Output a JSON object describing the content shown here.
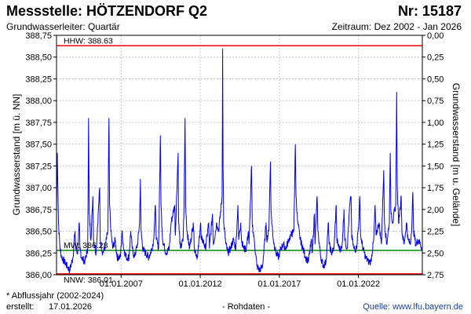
{
  "header": {
    "title": "Messstelle: HÖTZENDORF Q2",
    "number": "Nr: 15187",
    "aquifer": "Grundwasserleiter: Quartär",
    "period": "Zeitraum: Dez 2002 - Jan 2026"
  },
  "footer": {
    "note": "* Abflussjahr (2002-2024)",
    "created_label": "erstellt:",
    "created_date": "17.01.2026",
    "rawdata": "- Rohdaten -",
    "source": "Quelle: www.lfu.bayern.de"
  },
  "colors": {
    "series": "#0000ee",
    "hhw": "#ee0000",
    "nnw": "#ee0000",
    "mw": "#008800",
    "grid": "#c8c8c8"
  },
  "chart_data": {
    "type": "line",
    "ylabel": "Grundwasserstand [m ü. NN]",
    "y2label": "Grundwasserstand [m u. Gelände]",
    "ylim": [
      386.0,
      388.75
    ],
    "y2lim": [
      2.75,
      0.0
    ],
    "xlim": [
      "2002-12-01",
      "2026-01-15"
    ],
    "grid": true,
    "yticks": [
      "388,75",
      "388,50",
      "388,25",
      "388,00",
      "387,75",
      "387,50",
      "387,25",
      "387,00",
      "386,75",
      "386,50",
      "386,25",
      "386,00"
    ],
    "ytick_values": [
      388.75,
      388.5,
      388.25,
      388.0,
      387.75,
      387.5,
      387.25,
      387.0,
      386.75,
      386.5,
      386.25,
      386.0
    ],
    "y2ticks": [
      "0,00",
      "0,25",
      "0,50",
      "0,75",
      "1,00",
      "1,25",
      "1,50",
      "1,75",
      "2,00",
      "2,25",
      "2,50",
      "2,75"
    ],
    "xticks": [
      {
        "label": "01.01.2007",
        "date": "2007-01-01"
      },
      {
        "label": "01.01.2012",
        "date": "2012-01-01"
      },
      {
        "label": "01.01.2017",
        "date": "2017-01-01"
      },
      {
        "label": "01.01.2022",
        "date": "2022-01-01"
      }
    ],
    "reference_lines": [
      {
        "name": "HHW",
        "label": "HHW: 388.63",
        "value": 388.63
      },
      {
        "name": "MW",
        "label": "MW: 386.28",
        "value": 386.28
      },
      {
        "name": "NNW",
        "label": "NNW: 386.01",
        "value": 386.01
      }
    ],
    "series": [
      {
        "color": "#0000ee",
        "points": [
          [
            "2002-12-01",
            386.7
          ],
          [
            "2002-12-20",
            387.4
          ],
          [
            "2003-01-15",
            386.6
          ],
          [
            "2003-02-20",
            386.3
          ],
          [
            "2003-04-01",
            386.2
          ],
          [
            "2003-06-01",
            386.15
          ],
          [
            "2003-08-01",
            386.1
          ],
          [
            "2003-10-01",
            386.05
          ],
          [
            "2003-12-15",
            386.2
          ],
          [
            "2004-02-01",
            386.5
          ],
          [
            "2004-02-20",
            386.3
          ],
          [
            "2004-04-01",
            386.25
          ],
          [
            "2004-05-10",
            386.6
          ],
          [
            "2004-05-25",
            386.3
          ],
          [
            "2004-07-01",
            386.2
          ],
          [
            "2004-09-15",
            386.15
          ],
          [
            "2004-11-20",
            386.3
          ],
          [
            "2004-12-10",
            387.8
          ],
          [
            "2004-12-25",
            386.7
          ],
          [
            "2005-02-01",
            386.4
          ],
          [
            "2005-03-20",
            386.9
          ],
          [
            "2005-04-05",
            386.4
          ],
          [
            "2005-06-01",
            386.25
          ],
          [
            "2005-08-23",
            387.0
          ],
          [
            "2005-09-05",
            386.4
          ],
          [
            "2005-11-01",
            386.25
          ],
          [
            "2005-12-20",
            386.3
          ],
          [
            "2006-03-01",
            386.5
          ],
          [
            "2006-03-25",
            387.8
          ],
          [
            "2006-04-10",
            386.8
          ],
          [
            "2006-05-10",
            386.5
          ],
          [
            "2006-06-20",
            386.3
          ],
          [
            "2006-08-15",
            386.4
          ],
          [
            "2006-10-01",
            386.2
          ],
          [
            "2006-12-15",
            386.2
          ],
          [
            "2007-01-20",
            386.5
          ],
          [
            "2007-03-01",
            386.3
          ],
          [
            "2007-05-01",
            386.2
          ],
          [
            "2007-07-01",
            386.2
          ],
          [
            "2007-08-10",
            386.5
          ],
          [
            "2007-09-15",
            386.3
          ],
          [
            "2007-11-01",
            386.2
          ],
          [
            "2008-01-15",
            386.35
          ],
          [
            "2008-03-01",
            386.6
          ],
          [
            "2008-03-20",
            387.1
          ],
          [
            "2008-04-05",
            386.5
          ],
          [
            "2008-05-15",
            386.3
          ],
          [
            "2008-07-15",
            386.25
          ],
          [
            "2008-10-01",
            386.2
          ],
          [
            "2008-12-10",
            386.3
          ],
          [
            "2009-01-20",
            386.4
          ],
          [
            "2009-03-01",
            386.8
          ],
          [
            "2009-03-25",
            386.4
          ],
          [
            "2009-05-15",
            386.3
          ],
          [
            "2009-06-25",
            387.6
          ],
          [
            "2009-07-10",
            386.8
          ],
          [
            "2009-08-15",
            386.4
          ],
          [
            "2009-11-01",
            386.25
          ],
          [
            "2010-01-15",
            386.3
          ],
          [
            "2010-03-01",
            386.6
          ],
          [
            "2010-05-20",
            386.8
          ],
          [
            "2010-06-05",
            386.45
          ],
          [
            "2010-08-08",
            387.4
          ],
          [
            "2010-08-20",
            386.6
          ],
          [
            "2010-10-01",
            386.3
          ],
          [
            "2010-12-01",
            386.4
          ],
          [
            "2010-12-25",
            386.8
          ],
          [
            "2011-01-15",
            387.8
          ],
          [
            "2011-01-30",
            386.8
          ],
          [
            "2011-03-01",
            386.5
          ],
          [
            "2011-05-01",
            386.3
          ],
          [
            "2011-07-25",
            386.6
          ],
          [
            "2011-08-20",
            386.3
          ],
          [
            "2011-11-01",
            386.2
          ],
          [
            "2012-01-10",
            386.6
          ],
          [
            "2012-01-25",
            386.4
          ],
          [
            "2012-03-01",
            386.4
          ],
          [
            "2012-05-01",
            386.3
          ],
          [
            "2012-07-15",
            386.6
          ],
          [
            "2012-08-01",
            386.3
          ],
          [
            "2012-10-10",
            386.7
          ],
          [
            "2012-10-30",
            386.35
          ],
          [
            "2012-12-20",
            386.5
          ],
          [
            "2013-01-15",
            386.6
          ],
          [
            "2013-03-01",
            386.5
          ],
          [
            "2013-05-20",
            386.9
          ],
          [
            "2013-06-02",
            388.6
          ],
          [
            "2013-06-12",
            387.2
          ],
          [
            "2013-06-25",
            386.6
          ],
          [
            "2013-08-15",
            386.35
          ],
          [
            "2013-10-01",
            386.25
          ],
          [
            "2013-12-01",
            386.3
          ],
          [
            "2014-02-01",
            386.4
          ],
          [
            "2014-04-01",
            386.3
          ],
          [
            "2014-05-20",
            386.8
          ],
          [
            "2014-06-05",
            386.4
          ],
          [
            "2014-07-25",
            386.6
          ],
          [
            "2014-08-10",
            386.4
          ],
          [
            "2014-10-01",
            386.3
          ],
          [
            "2014-12-01",
            386.3
          ],
          [
            "2015-01-15",
            386.5
          ],
          [
            "2015-02-01",
            386.35
          ],
          [
            "2015-03-31",
            387.25
          ],
          [
            "2015-04-15",
            386.6
          ],
          [
            "2015-06-01",
            386.4
          ],
          [
            "2015-08-01",
            386.1
          ],
          [
            "2015-10-01",
            386.05
          ],
          [
            "2015-12-10",
            386.1
          ],
          [
            "2016-02-01",
            386.4
          ],
          [
            "2016-03-01",
            386.6
          ],
          [
            "2016-03-15",
            386.4
          ],
          [
            "2016-05-01",
            386.5
          ],
          [
            "2016-06-10",
            387.3
          ],
          [
            "2016-06-25",
            386.7
          ],
          [
            "2016-08-15",
            386.4
          ],
          [
            "2016-10-15",
            386.25
          ],
          [
            "2016-12-15",
            386.2
          ],
          [
            "2017-02-01",
            386.3
          ],
          [
            "2017-04-01",
            386.35
          ],
          [
            "2017-06-01",
            386.3
          ],
          [
            "2017-08-01",
            386.4
          ],
          [
            "2017-09-20",
            386.45
          ],
          [
            "2017-12-01",
            386.5
          ],
          [
            "2018-01-05",
            387.5
          ],
          [
            "2018-01-20",
            386.9
          ],
          [
            "2018-03-01",
            386.6
          ],
          [
            "2018-05-01",
            386.4
          ],
          [
            "2018-07-01",
            386.3
          ],
          [
            "2018-09-01",
            386.2
          ],
          [
            "2018-11-01",
            386.15
          ],
          [
            "2019-01-15",
            386.4
          ],
          [
            "2019-02-01",
            386.25
          ],
          [
            "2019-03-20",
            386.7
          ],
          [
            "2019-04-05",
            386.35
          ],
          [
            "2019-05-22",
            386.9
          ],
          [
            "2019-06-10",
            386.5
          ],
          [
            "2019-08-15",
            386.2
          ],
          [
            "2019-10-15",
            386.1
          ],
          [
            "2019-12-15",
            386.15
          ],
          [
            "2020-02-08",
            386.6
          ],
          [
            "2020-02-25",
            386.35
          ],
          [
            "2020-04-15",
            386.25
          ],
          [
            "2020-06-15",
            386.3
          ],
          [
            "2020-08-05",
            386.8
          ],
          [
            "2020-08-20",
            386.4
          ],
          [
            "2020-10-15",
            386.3
          ],
          [
            "2020-12-15",
            386.3
          ],
          [
            "2021-02-01",
            386.75
          ],
          [
            "2021-02-20",
            386.4
          ],
          [
            "2021-04-15",
            386.3
          ],
          [
            "2021-06-15",
            386.8
          ],
          [
            "2021-07-15",
            386.9
          ],
          [
            "2021-07-28",
            386.45
          ],
          [
            "2021-09-15",
            386.3
          ],
          [
            "2021-11-15",
            386.3
          ],
          [
            "2022-01-10",
            386.6
          ],
          [
            "2022-02-01",
            386.9
          ],
          [
            "2022-02-20",
            386.45
          ],
          [
            "2022-04-15",
            386.3
          ],
          [
            "2022-06-15",
            386.2
          ],
          [
            "2022-08-15",
            386.15
          ],
          [
            "2022-10-15",
            386.15
          ],
          [
            "2022-12-20",
            386.4
          ],
          [
            "2023-01-20",
            386.8
          ],
          [
            "2023-02-10",
            386.45
          ],
          [
            "2023-04-20",
            386.6
          ],
          [
            "2023-06-15",
            386.35
          ],
          [
            "2023-08-07",
            387.2
          ],
          [
            "2023-08-25",
            386.6
          ],
          [
            "2023-10-15",
            386.35
          ],
          [
            "2023-12-15",
            386.6
          ],
          [
            "2024-01-05",
            387.4
          ],
          [
            "2024-01-20",
            386.75
          ],
          [
            "2024-03-01",
            386.6
          ],
          [
            "2024-05-10",
            386.8
          ],
          [
            "2024-06-02",
            388.1
          ],
          [
            "2024-06-15",
            387.0
          ],
          [
            "2024-07-15",
            386.6
          ],
          [
            "2024-09-15",
            386.9
          ],
          [
            "2024-10-01",
            386.5
          ],
          [
            "2024-11-20",
            386.35
          ],
          [
            "2025-01-15",
            386.6
          ],
          [
            "2025-02-20",
            386.4
          ],
          [
            "2025-04-15",
            386.35
          ],
          [
            "2025-05-20",
            386.6
          ],
          [
            "2025-06-10",
            386.95
          ],
          [
            "2025-06-28",
            386.5
          ],
          [
            "2025-08-15",
            386.35
          ],
          [
            "2025-10-15",
            386.4
          ],
          [
            "2025-12-01",
            386.35
          ],
          [
            "2026-01-12",
            386.3
          ]
        ]
      }
    ]
  }
}
